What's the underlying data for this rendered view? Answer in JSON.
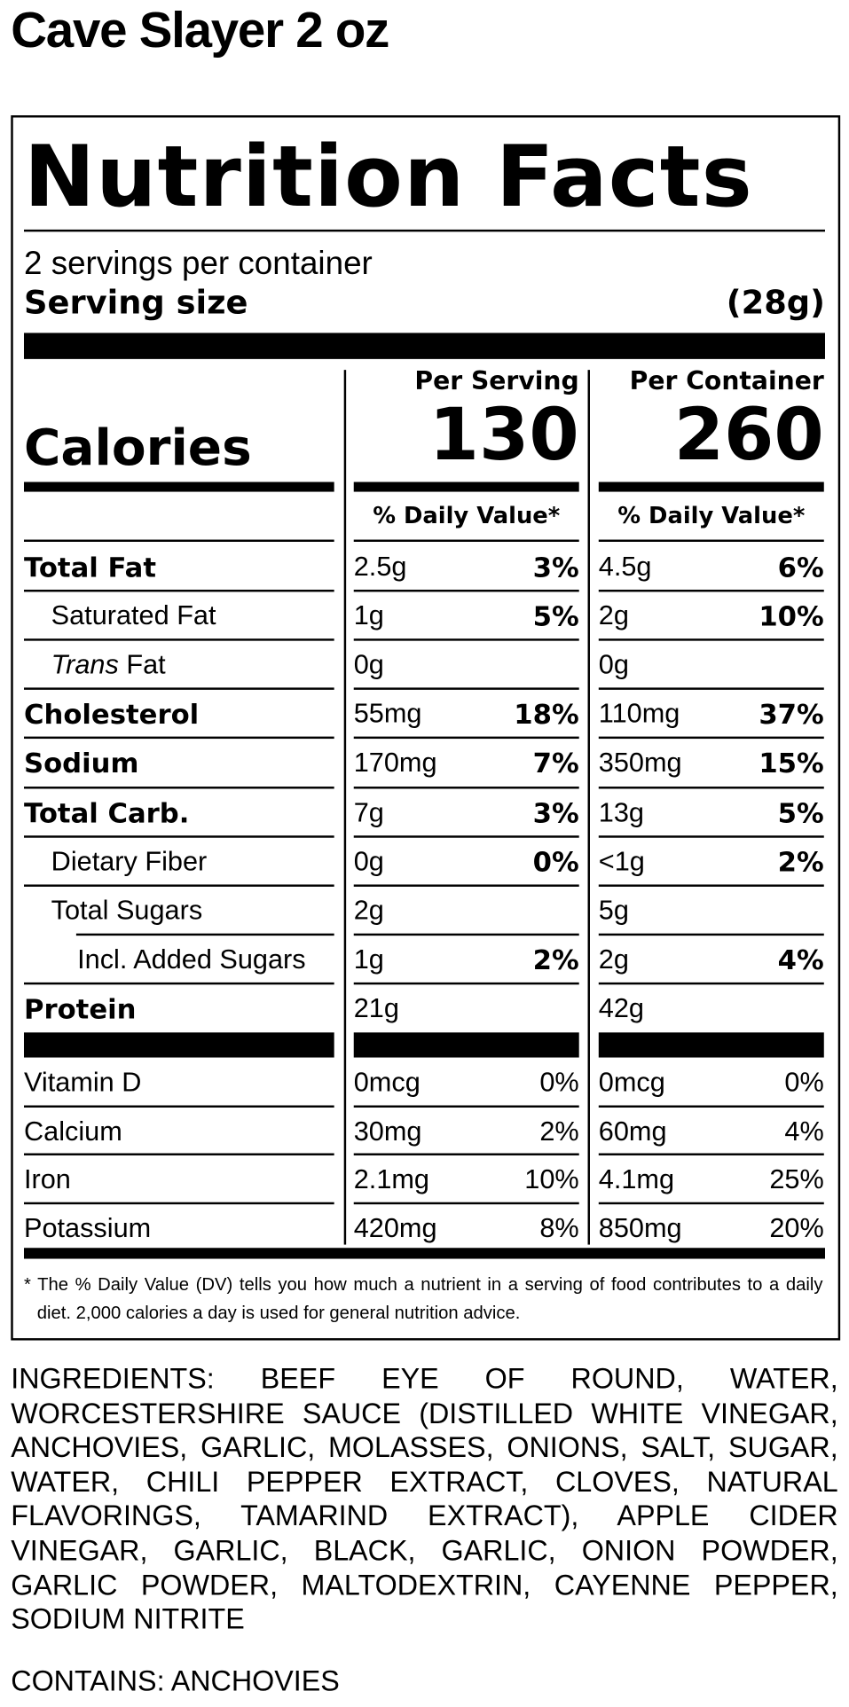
{
  "title": "Cave Slayer 2 oz",
  "label": {
    "heading": "Nutrition Facts",
    "servings_per_container": "2 servings per container",
    "serving_size_label": "Serving size",
    "serving_size": "(28g)",
    "columns": [
      "Per Serving",
      "Per Container"
    ],
    "calories_label": "Calories",
    "calories": [
      "130",
      "260"
    ],
    "dv_header": "% Daily Value*",
    "nutrients": [
      {
        "name": "Total Fat",
        "values": [
          [
            "2.5g",
            "3%"
          ],
          [
            "4.5g",
            "6%"
          ]
        ]
      },
      {
        "name": "Saturated Fat",
        "values": [
          [
            "1g",
            "5%"
          ],
          [
            "2g",
            "10%"
          ]
        ]
      },
      {
        "name_italic": "Trans",
        "name": "Fat",
        "values": [
          [
            "0g"
          ],
          [
            "0g"
          ]
        ]
      },
      {
        "name": "Cholesterol",
        "values": [
          [
            "55mg",
            "18%"
          ],
          [
            "110mg",
            "37%"
          ]
        ]
      },
      {
        "name": "Sodium",
        "values": [
          [
            "170mg",
            "7%"
          ],
          [
            "350mg",
            "15%"
          ]
        ]
      },
      {
        "name": "Total Carb.",
        "values": [
          [
            "7g",
            "3%"
          ],
          [
            "13g",
            "5%"
          ]
        ]
      },
      {
        "name": "Dietary Fiber",
        "values": [
          [
            "0g",
            "0%"
          ],
          [
            "<1g",
            "2%"
          ]
        ]
      },
      {
        "name": "Total Sugars",
        "values": [
          [
            "2g"
          ],
          [
            "5g"
          ]
        ]
      },
      {
        "name": "Incl. Added Sugars",
        "values": [
          [
            "1g",
            "2%"
          ],
          [
            "2g",
            "4%"
          ]
        ]
      },
      {
        "name": "Protein",
        "values": [
          [
            "21g"
          ],
          [
            "42g"
          ]
        ]
      }
    ],
    "vitamins": [
      {
        "name": "Vitamin D",
        "values": [
          [
            "0mcg",
            "0%"
          ],
          [
            "0mcg",
            "0%"
          ]
        ]
      },
      {
        "name": "Calcium",
        "values": [
          [
            "30mg",
            "2%"
          ],
          [
            "60mg",
            "4%"
          ]
        ]
      },
      {
        "name": "Iron",
        "values": [
          [
            "2.1mg",
            "10%"
          ],
          [
            "4.1mg",
            "25%"
          ]
        ]
      },
      {
        "name": "Potassium",
        "values": [
          [
            "420mg",
            "8%"
          ],
          [
            "850mg",
            "20%"
          ]
        ]
      }
    ],
    "footnote": "* The % Daily Value (DV) tells you how much a nutrient in a serving of food contributes to a daily diet. 2,000 calories a day is used for general nutrition advice."
  },
  "ingredients": "INGREDIENTS: BEEF EYE OF ROUND, WATER, WORCESTERSHIRE SAUCE (DISTILLED WHITE VINEGAR, ANCHOVIES, GARLIC, MOLASSES, ONIONS, SALT, SUGAR, WATER, CHILI PEPPER EXTRACT, CLOVES, NATURAL FLAVORINGS, TAMARIND EXTRACT), APPLE CIDER VINEGAR, GARLIC, BLACK, GARLIC, ONION POWDER, GARLIC POWDER, MALTODEXTRIN, CAYENNE PEPPER, SODIUM NITRITE",
  "contains": "CONTAINS: ANCHOVIES"
}
